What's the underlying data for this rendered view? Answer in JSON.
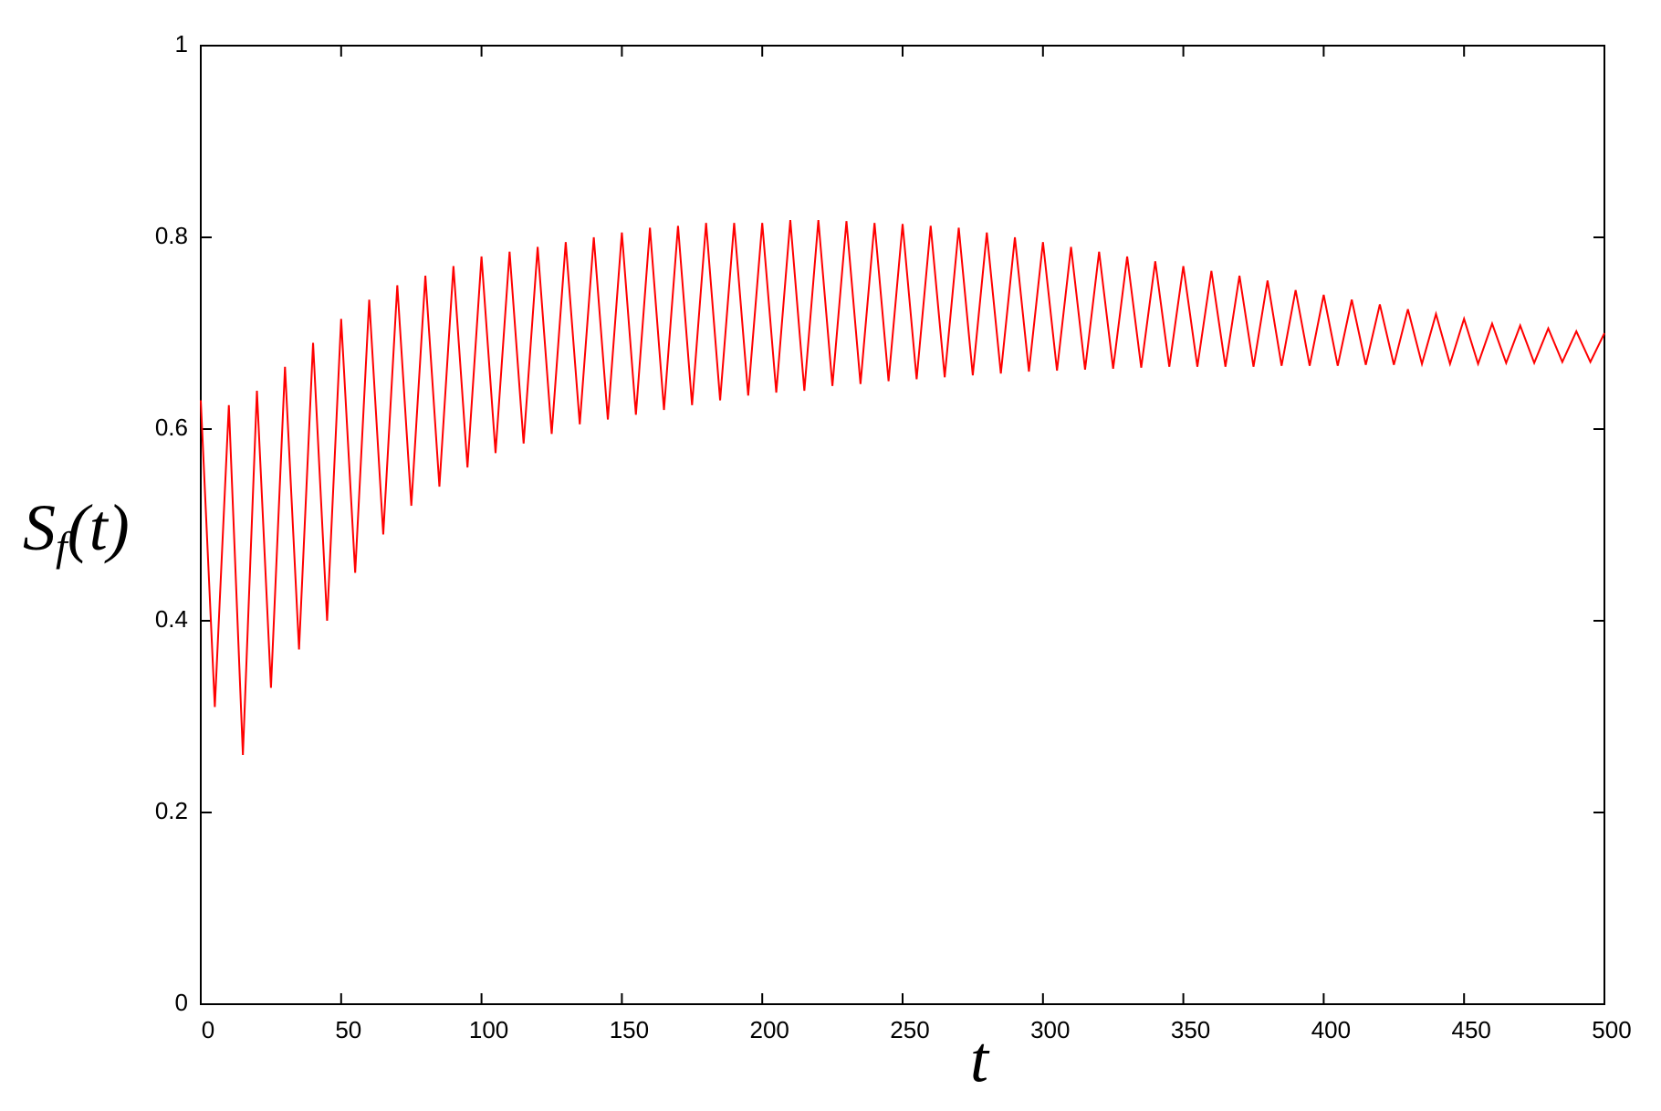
{
  "chart_data": {
    "type": "line",
    "xlabel": "t",
    "ylabel": [
      "S",
      "f",
      "(t)"
    ],
    "xlim": [
      0,
      500
    ],
    "ylim": [
      0,
      1
    ],
    "xticks": [
      0,
      50,
      100,
      150,
      200,
      250,
      300,
      350,
      400,
      450,
      500
    ],
    "yticks": [
      0,
      0.2,
      0.4,
      0.6,
      0.8,
      1
    ],
    "x": [
      0,
      5,
      10,
      15,
      20,
      25,
      30,
      35,
      40,
      45,
      50,
      55,
      60,
      65,
      70,
      75,
      80,
      85,
      90,
      95,
      100,
      105,
      110,
      115,
      120,
      125,
      130,
      135,
      140,
      145,
      150,
      155,
      160,
      165,
      170,
      175,
      180,
      185,
      190,
      195,
      200,
      205,
      210,
      215,
      220,
      225,
      230,
      235,
      240,
      245,
      250,
      255,
      260,
      265,
      270,
      275,
      280,
      285,
      290,
      295,
      300,
      305,
      310,
      315,
      320,
      325,
      330,
      335,
      340,
      345,
      350,
      355,
      360,
      365,
      370,
      375,
      380,
      385,
      390,
      395,
      400,
      405,
      410,
      415,
      420,
      425,
      430,
      435,
      440,
      445,
      450,
      455,
      460,
      465,
      470,
      475,
      480,
      485,
      490,
      495,
      500
    ],
    "series": [
      {
        "color": "#ff0000",
        "values": [
          0.63,
          0.31,
          0.625,
          0.26,
          0.64,
          0.33,
          0.665,
          0.37,
          0.69,
          0.4,
          0.715,
          0.45,
          0.735,
          0.49,
          0.75,
          0.52,
          0.76,
          0.54,
          0.77,
          0.56,
          0.78,
          0.575,
          0.785,
          0.585,
          0.79,
          0.595,
          0.795,
          0.605,
          0.8,
          0.61,
          0.805,
          0.615,
          0.81,
          0.62,
          0.812,
          0.625,
          0.815,
          0.63,
          0.815,
          0.635,
          0.815,
          0.638,
          0.818,
          0.64,
          0.818,
          0.645,
          0.817,
          0.647,
          0.815,
          0.65,
          0.814,
          0.652,
          0.812,
          0.654,
          0.81,
          0.656,
          0.805,
          0.658,
          0.8,
          0.66,
          0.795,
          0.661,
          0.79,
          0.662,
          0.785,
          0.663,
          0.78,
          0.664,
          0.775,
          0.665,
          0.77,
          0.665,
          0.765,
          0.665,
          0.76,
          0.665,
          0.755,
          0.666,
          0.745,
          0.666,
          0.74,
          0.666,
          0.735,
          0.667,
          0.73,
          0.667,
          0.725,
          0.668,
          0.72,
          0.668,
          0.715,
          0.668,
          0.71,
          0.669,
          0.708,
          0.669,
          0.705,
          0.67,
          0.702,
          0.67,
          0.7
        ]
      }
    ]
  }
}
